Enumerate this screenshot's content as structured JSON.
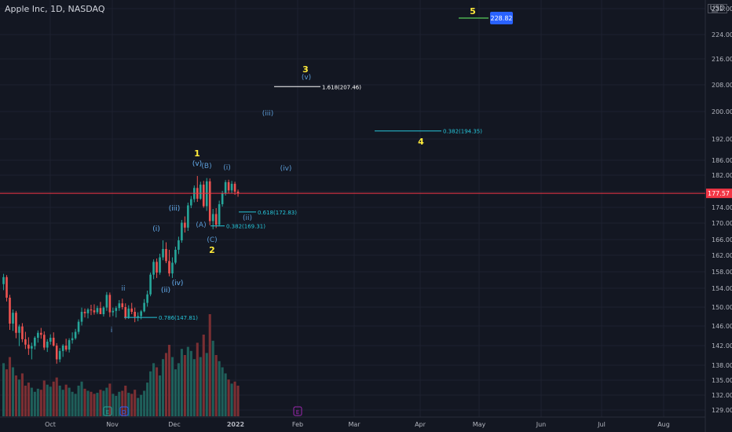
{
  "header": {
    "symbol_title": "Apple Inc, 1D, NASDAQ",
    "currency": "USD"
  },
  "colors": {
    "background": "#131722",
    "grid": "#1e2230",
    "up": "#26a69a",
    "down": "#ef5350",
    "vol_up": "#1f5f5a",
    "vol_down": "#7b2f33",
    "wave_major": "#ffeb3b",
    "wave_minor": "#5b9bd5",
    "fib_teal": "#26c6da",
    "price_line": "#f23645",
    "target_badge": "#2962ff",
    "target_line": "#4caf50",
    "axis_text": "#b2b5be"
  },
  "chart_data": {
    "type": "candlestick",
    "symbol": "Apple Inc",
    "interval": "1D",
    "exchange": "NASDAQ",
    "ylim": [
      128,
      232
    ],
    "y_ticks": [
      "129.00",
      "132.00",
      "135.00",
      "138.00",
      "142.00",
      "146.00",
      "150.00",
      "154.00",
      "158.00",
      "162.00",
      "166.00",
      "170.00",
      "174.00",
      "178.00",
      "182.00",
      "186.00",
      "192.00",
      "200.00",
      "208.00",
      "216.00",
      "224.00",
      "232.00"
    ],
    "x_ticks": [
      "Oct",
      "Nov",
      "Dec",
      "2022",
      "Feb",
      "Mar",
      "Apr",
      "May",
      "Jun",
      "Jul",
      "Aug"
    ],
    "last_price": "177.57",
    "target_price": "228.82",
    "ohlc": [
      [
        155.0,
        157.5,
        153.6,
        156.7
      ],
      [
        156.7,
        157.2,
        151.2,
        152.0
      ],
      [
        152.0,
        152.6,
        145.2,
        146.5
      ],
      [
        146.5,
        149.5,
        145.0,
        148.8
      ],
      [
        148.8,
        149.2,
        143.5,
        144.6
      ],
      [
        144.6,
        146.3,
        141.9,
        145.9
      ],
      [
        145.9,
        146.6,
        142.7,
        143.3
      ],
      [
        143.3,
        144.8,
        141.3,
        142.2
      ],
      [
        142.2,
        143.7,
        140.1,
        141.4
      ],
      [
        141.4,
        142.6,
        139.2,
        141.9
      ],
      [
        141.9,
        143.9,
        141.2,
        143.6
      ],
      [
        143.6,
        145.1,
        142.6,
        144.6
      ],
      [
        144.6,
        145.6,
        143.4,
        144.2
      ],
      [
        144.2,
        144.9,
        141.1,
        141.6
      ],
      [
        141.6,
        143.3,
        140.7,
        142.8
      ],
      [
        142.8,
        144.3,
        142.2,
        143.6
      ],
      [
        143.6,
        144.7,
        141.8,
        142.0
      ],
      [
        142.0,
        142.5,
        138.3,
        139.2
      ],
      [
        139.2,
        141.5,
        138.6,
        140.9
      ],
      [
        140.9,
        142.3,
        139.7,
        142.0
      ],
      [
        142.0,
        143.4,
        140.8,
        141.2
      ],
      [
        141.2,
        143.5,
        140.6,
        143.1
      ],
      [
        143.1,
        144.7,
        142.4,
        143.5
      ],
      [
        143.5,
        145.4,
        143.2,
        144.8
      ],
      [
        144.8,
        147.4,
        144.3,
        146.9
      ],
      [
        146.9,
        149.9,
        146.1,
        149.0
      ],
      [
        149.0,
        149.7,
        147.8,
        148.7
      ],
      [
        148.7,
        149.8,
        147.6,
        149.5
      ],
      [
        149.5,
        150.5,
        148.3,
        149.3
      ],
      [
        149.3,
        150.6,
        148.4,
        148.9
      ],
      [
        148.9,
        150.3,
        148.5,
        149.8
      ],
      [
        149.8,
        151.1,
        148.7,
        148.5
      ],
      [
        148.5,
        150.2,
        148.0,
        149.9
      ],
      [
        149.9,
        153.2,
        149.2,
        152.6
      ],
      [
        152.6,
        153.1,
        147.9,
        148.9
      ],
      [
        148.9,
        149.9,
        148.1,
        149.2
      ],
      [
        149.2,
        150.2,
        147.8,
        149.8
      ],
      [
        149.8,
        151.5,
        149.2,
        150.8
      ],
      [
        150.8,
        151.8,
        149.5,
        150.0
      ],
      [
        150.0,
        150.8,
        147.4,
        147.9
      ],
      [
        147.9,
        150.4,
        147.5,
        149.7
      ],
      [
        149.7,
        150.9,
        148.5,
        149.0
      ],
      [
        149.0,
        149.9,
        146.8,
        148.0
      ],
      [
        148.0,
        148.9,
        147.0,
        148.1
      ],
      [
        148.1,
        149.4,
        147.4,
        149.1
      ],
      [
        149.1,
        151.7,
        148.9,
        150.9
      ],
      [
        150.9,
        153.5,
        150.1,
        152.7
      ],
      [
        152.7,
        157.8,
        152.3,
        157.3
      ],
      [
        157.3,
        161.0,
        156.2,
        160.4
      ],
      [
        160.4,
        161.2,
        156.5,
        157.8
      ],
      [
        157.8,
        162.4,
        157.3,
        161.5
      ],
      [
        161.5,
        165.8,
        160.8,
        163.6
      ],
      [
        163.6,
        165.3,
        160.1,
        160.6
      ],
      [
        160.6,
        163.4,
        156.9,
        157.6
      ],
      [
        157.6,
        161.5,
        156.5,
        160.2
      ],
      [
        160.2,
        164.2,
        159.8,
        163.4
      ],
      [
        163.4,
        166.7,
        162.3,
        165.8
      ],
      [
        165.8,
        170.8,
        165.2,
        170.1
      ],
      [
        170.1,
        171.7,
        167.7,
        168.9
      ],
      [
        168.9,
        175.2,
        168.1,
        174.5
      ],
      [
        174.5,
        176.9,
        173.8,
        176.1
      ],
      [
        176.1,
        179.5,
        175.3,
        178.9
      ],
      [
        178.9,
        181.8,
        175.4,
        176.2
      ],
      [
        176.2,
        180.4,
        175.9,
        179.7
      ],
      [
        179.7,
        180.6,
        173.9,
        174.3
      ],
      [
        174.3,
        181.3,
        173.1,
        180.5
      ],
      [
        180.5,
        181.2,
        169.5,
        170.5
      ],
      [
        170.5,
        173.6,
        168.5,
        172.3
      ],
      [
        172.3,
        173.8,
        168.8,
        169.6
      ],
      [
        169.6,
        175.7,
        169.2,
        174.8
      ],
      [
        174.8,
        178.2,
        174.2,
        177.6
      ],
      [
        177.6,
        180.8,
        177.0,
        180.3
      ],
      [
        180.3,
        180.9,
        177.6,
        178.3
      ],
      [
        178.3,
        180.6,
        177.5,
        179.9
      ],
      [
        179.9,
        180.4,
        177.2,
        178.0
      ],
      [
        178.0,
        178.5,
        176.7,
        177.6
      ]
    ],
    "volume": [
      0.52,
      0.46,
      0.58,
      0.48,
      0.4,
      0.36,
      0.42,
      0.3,
      0.33,
      0.28,
      0.24,
      0.27,
      0.26,
      0.35,
      0.31,
      0.29,
      0.34,
      0.38,
      0.3,
      0.26,
      0.31,
      0.28,
      0.24,
      0.22,
      0.3,
      0.34,
      0.27,
      0.25,
      0.24,
      0.22,
      0.23,
      0.26,
      0.25,
      0.28,
      0.32,
      0.22,
      0.2,
      0.24,
      0.25,
      0.3,
      0.23,
      0.22,
      0.26,
      0.18,
      0.21,
      0.25,
      0.33,
      0.44,
      0.52,
      0.48,
      0.4,
      0.56,
      0.62,
      0.7,
      0.58,
      0.46,
      0.52,
      0.66,
      0.6,
      0.68,
      0.64,
      0.56,
      0.72,
      0.58,
      0.8,
      0.62,
      1.0,
      0.74,
      0.6,
      0.54,
      0.48,
      0.42,
      0.36,
      0.32,
      0.34,
      0.3
    ],
    "fib_levels": [
      {
        "label": "0.786(147.81)",
        "price": 147.81
      },
      {
        "label": "0.382(169.31)",
        "price": 169.31
      },
      {
        "label": "0.618(172.83)",
        "price": 172.83
      },
      {
        "label": "0.382(194.35)",
        "price": 194.35
      },
      {
        "label": "1.618(207.46)",
        "price": 207.46
      }
    ],
    "wave_labels": {
      "major": [
        "1",
        "2",
        "3",
        "4",
        "5"
      ],
      "minor": [
        "(i)",
        "(ii)",
        "(iii)",
        "(iv)",
        "(v)",
        "(A)",
        "(B)",
        "(C)",
        "(i)",
        "(ii)",
        "(iii)",
        "(iv)",
        "(v)",
        "(i)",
        "(ii)",
        "(iii)",
        "(iv)",
        "(v)",
        "i",
        "ii"
      ]
    },
    "event_markers": [
      "E",
      "D",
      "E"
    ]
  }
}
